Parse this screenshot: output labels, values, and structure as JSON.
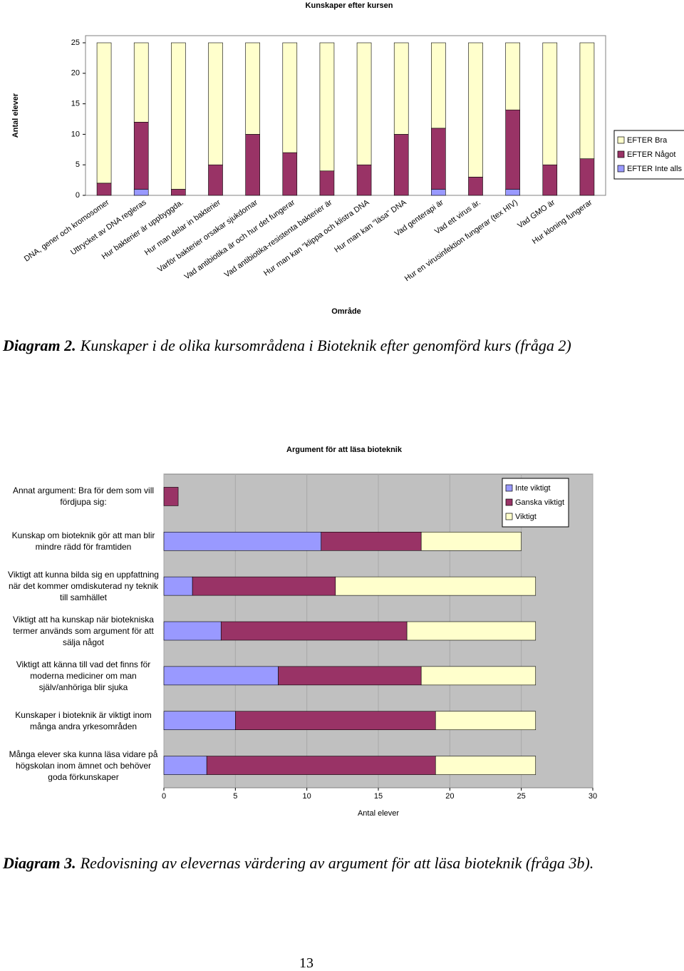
{
  "chart_data": [
    {
      "type": "stacked-bar",
      "title": "Kunskaper efter kursen",
      "y_label": "Antal elever",
      "x_label": "Område",
      "categories": [
        "DNA, gener och kromosomer",
        "Uttrycket av DNA regleras",
        "Hur bakterier är uppbyggda.",
        "Hur man delar in bakterier",
        "Varför bakterier orsakar sjukdomar",
        "Vad antibiotika är och hur det fungerar",
        "Vad antibiotika-resistenta bakterier är",
        "Hur man kan \"klippa och klistra DNA",
        "Hur man kan \"läsa\" DNA",
        "Vad genterapi är",
        "Vad ett virus är.",
        "Hur en virusinfektion fungerar (tex HIV)",
        "Vad GMO är",
        "Hur kloning fungerar"
      ],
      "series": [
        {
          "name": "EFTER Bra",
          "color": "#ffffcc",
          "values": [
            23,
            13,
            24,
            20,
            15,
            18,
            21,
            20,
            15,
            14,
            22,
            11,
            20,
            19
          ]
        },
        {
          "name": "EFTER Något",
          "color": "#993366",
          "values": [
            2,
            11,
            1,
            5,
            10,
            7,
            4,
            5,
            10,
            10,
            3,
            13,
            5,
            6
          ]
        },
        {
          "name": "EFTER Inte alls",
          "color": "#9999ff",
          "values": [
            0,
            1,
            0,
            0,
            0,
            0,
            0,
            0,
            0,
            1,
            0,
            1,
            0,
            0
          ]
        }
      ],
      "ylim": [
        0,
        25
      ],
      "yticks": [
        0,
        5,
        10,
        15,
        20,
        25
      ],
      "grid": false,
      "legend": "right"
    },
    {
      "type": "stacked-barh",
      "title": "Argument för att läsa bioteknik",
      "x_label": "Antal elever",
      "categories": [
        "Annat argument: Bra för dem som vill fördjupa sig:",
        "Kunskap om bioteknik gör att man blir mindre rädd för framtiden",
        "Viktigt att kunna bilda sig en uppfattning när det kommer omdiskuterad ny teknik till samhället",
        "Viktigt att ha kunskap när biotekniska termer används som argument för att sälja något",
        "Viktigt att känna till vad det finns för moderna mediciner om man själv/anhöriga blir sjuka",
        "Kunskaper i bioteknik är viktigt inom många andra yrkesområden",
        "Många elever ska kunna läsa vidare på högskolan inom ämnet och behöver goda förkunskaper"
      ],
      "series": [
        {
          "name": "Inte viktigt",
          "color": "#9999ff",
          "values": [
            0,
            11,
            2,
            4,
            8,
            5,
            3
          ]
        },
        {
          "name": "Ganska viktigt",
          "color": "#993366",
          "values": [
            1,
            7,
            10,
            13,
            10,
            14,
            16
          ]
        },
        {
          "name": "Viktigt",
          "color": "#ffffcc",
          "values": [
            0,
            7,
            14,
            9,
            8,
            7,
            7
          ]
        }
      ],
      "xlim": [
        0,
        30
      ],
      "xticks": [
        0,
        5,
        10,
        15,
        20,
        25,
        30
      ],
      "grid": true,
      "legend": "top-right"
    }
  ],
  "captions": [
    {
      "label": "Diagram 2.",
      "text": "Kunskaper i de olika kursområdena i Bioteknik efter genomförd kurs (fråga 2)"
    },
    {
      "label": "Diagram 3.",
      "text": "Redovisning av elevernas värdering av argument för att läsa bioteknik (fråga 3b)."
    }
  ],
  "page_number": "13"
}
